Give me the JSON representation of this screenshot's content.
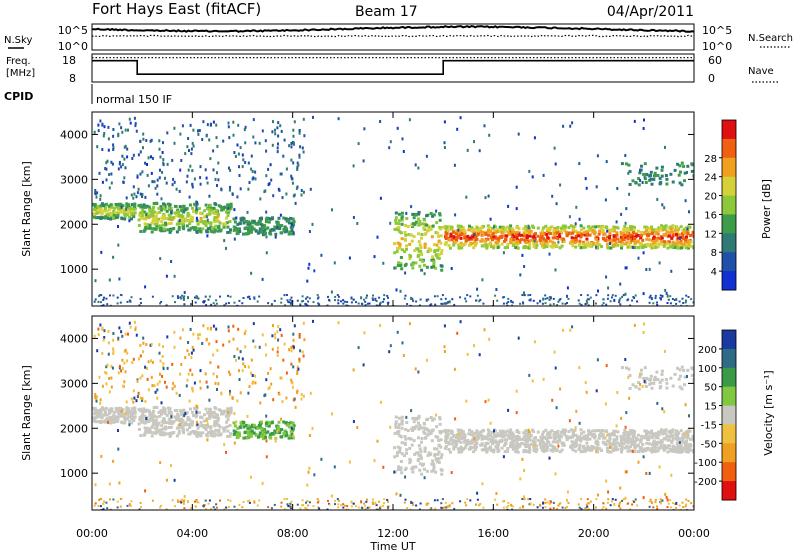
{
  "header": {
    "station": "Fort Hays East (fitACF)",
    "beam": "Beam 17",
    "date": "04/Apr/2011"
  },
  "chart_data": [
    {
      "type": "line",
      "panel": "noise",
      "left_label": "N.Sky",
      "right_label": "N.Search",
      "left_ticks": [
        "10^5",
        "10^0"
      ],
      "right_ticks": [
        "10^5",
        "10^0"
      ],
      "series": [
        {
          "name": "N.Sky",
          "style": "solid"
        },
        {
          "name": "N.Search",
          "style": "dotted"
        }
      ]
    },
    {
      "type": "line",
      "panel": "frequency",
      "left_label_line1": "Freq.",
      "left_label_line2": "[MHz]",
      "right_label": "Nave",
      "left_ticks": [
        18,
        8
      ],
      "right_ticks": [
        60,
        0
      ],
      "ylim": [
        8,
        18
      ],
      "y2lim": [
        0,
        60
      ],
      "x": [
        0,
        1.8,
        1.8,
        14,
        14,
        24
      ],
      "freq_mhz": [
        15.6,
        15.6,
        10.8,
        10.8,
        15.6,
        15.6
      ],
      "nave_x": [
        0,
        24
      ],
      "nave": [
        52,
        52
      ]
    },
    {
      "type": "text",
      "panel": "cpid",
      "label": "CPID",
      "value": "normal 150 IF"
    },
    {
      "type": "heatmap",
      "panel": "power",
      "ylabel": "Slant Range [km]",
      "yticks": [
        1000,
        2000,
        3000,
        4000
      ],
      "ylim": [
        180,
        4500
      ],
      "xlim": [
        0,
        24
      ],
      "colorbar_label": "Power [dB]",
      "colorbar_ticks": [
        "4",
        "8",
        "12",
        "16",
        "20",
        "24",
        "28"
      ],
      "colorbar_colors": [
        "#1030d0",
        "#2050a8",
        "#2f7a74",
        "#3c9c4a",
        "#8cc83a",
        "#d6d13a",
        "#f0a020",
        "#f06010",
        "#e01010"
      ],
      "features": [
        {
          "x0": 0.0,
          "x1": 1.7,
          "r0": 2150,
          "r1": 2500,
          "level": 0.55
        },
        {
          "x0": 1.8,
          "x1": 5.5,
          "r0": 1850,
          "r1": 2500,
          "level": 0.55
        },
        {
          "x0": 12.0,
          "x1": 13.9,
          "r0": 1000,
          "r1": 2300,
          "level": 0.6
        },
        {
          "x0": 14.0,
          "x1": 24.0,
          "r0": 1500,
          "r1": 2000,
          "level": 0.85
        }
      ]
    },
    {
      "type": "heatmap",
      "panel": "velocity",
      "ylabel": "Slant Range [km]",
      "yticks": [
        1000,
        2000,
        3000,
        4000
      ],
      "ylim": [
        180,
        4500
      ],
      "xlim": [
        0,
        24
      ],
      "xticks": [
        "00:00",
        "04:00",
        "08:00",
        "12:00",
        "16:00",
        "20:00",
        "00:00"
      ],
      "xlabel": "Time UT",
      "colorbar_label": "Velocity [m s⁻¹]",
      "colorbar_ticks": [
        "200",
        "100",
        "50",
        "15",
        "-15",
        "-50",
        "-100",
        "-200"
      ],
      "colorbar_colors": [
        "#1a3aa0",
        "#2f6a86",
        "#3a9a48",
        "#80c840",
        "#c8c8c0",
        "#f0c040",
        "#f0a020",
        "#f06010",
        "#e01010"
      ]
    }
  ]
}
